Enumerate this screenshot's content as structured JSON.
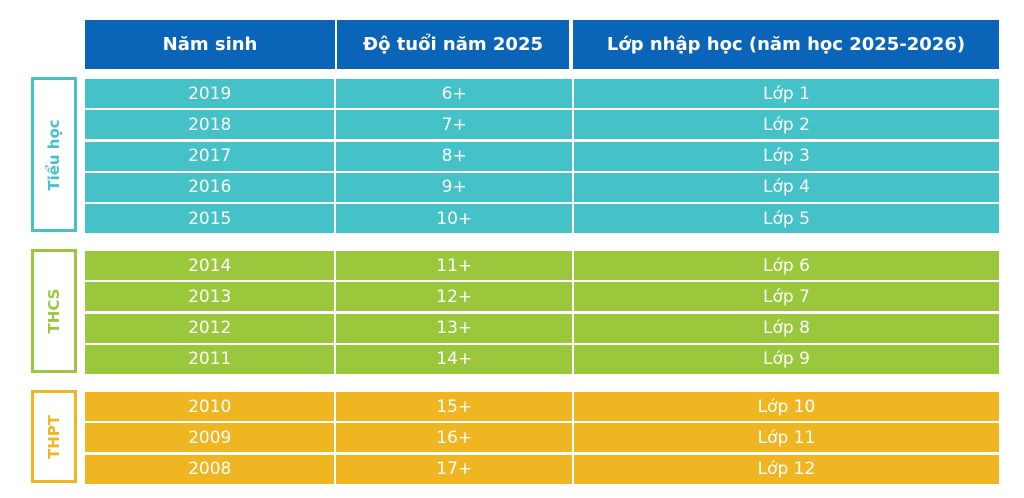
{
  "header": {
    "col1": "Năm sinh",
    "col2": "Độ tuổi năm 2025",
    "col3": "Lớp nhập học (năm học 2025-2026)"
  },
  "groups": [
    {
      "label": "Tiểu học",
      "color": "#45c1c8",
      "rows": [
        {
          "year": "2019",
          "age": "6+",
          "grade": "Lớp 1"
        },
        {
          "year": "2018",
          "age": "7+",
          "grade": "Lớp 2"
        },
        {
          "year": "2017",
          "age": "8+",
          "grade": "Lớp 3"
        },
        {
          "year": "2016",
          "age": "9+",
          "grade": "Lớp 4"
        },
        {
          "year": "2015",
          "age": "10+",
          "grade": "Lớp 5"
        }
      ]
    },
    {
      "label": "THCS",
      "color": "#9ac73c",
      "rows": [
        {
          "year": "2014",
          "age": "11+",
          "grade": "Lớp 6"
        },
        {
          "year": "2013",
          "age": "12+",
          "grade": "Lớp 7"
        },
        {
          "year": "2012",
          "age": "13+",
          "grade": "Lớp 8"
        },
        {
          "year": "2011",
          "age": "14+",
          "grade": "Lớp 9"
        }
      ]
    },
    {
      "label": "THPT",
      "color": "#f0b622",
      "rows": [
        {
          "year": "2010",
          "age": "15+",
          "grade": "Lớp 10"
        },
        {
          "year": "2009",
          "age": "16+",
          "grade": "Lớp 11"
        },
        {
          "year": "2008",
          "age": "17+",
          "grade": "Lớp 12"
        }
      ]
    }
  ]
}
